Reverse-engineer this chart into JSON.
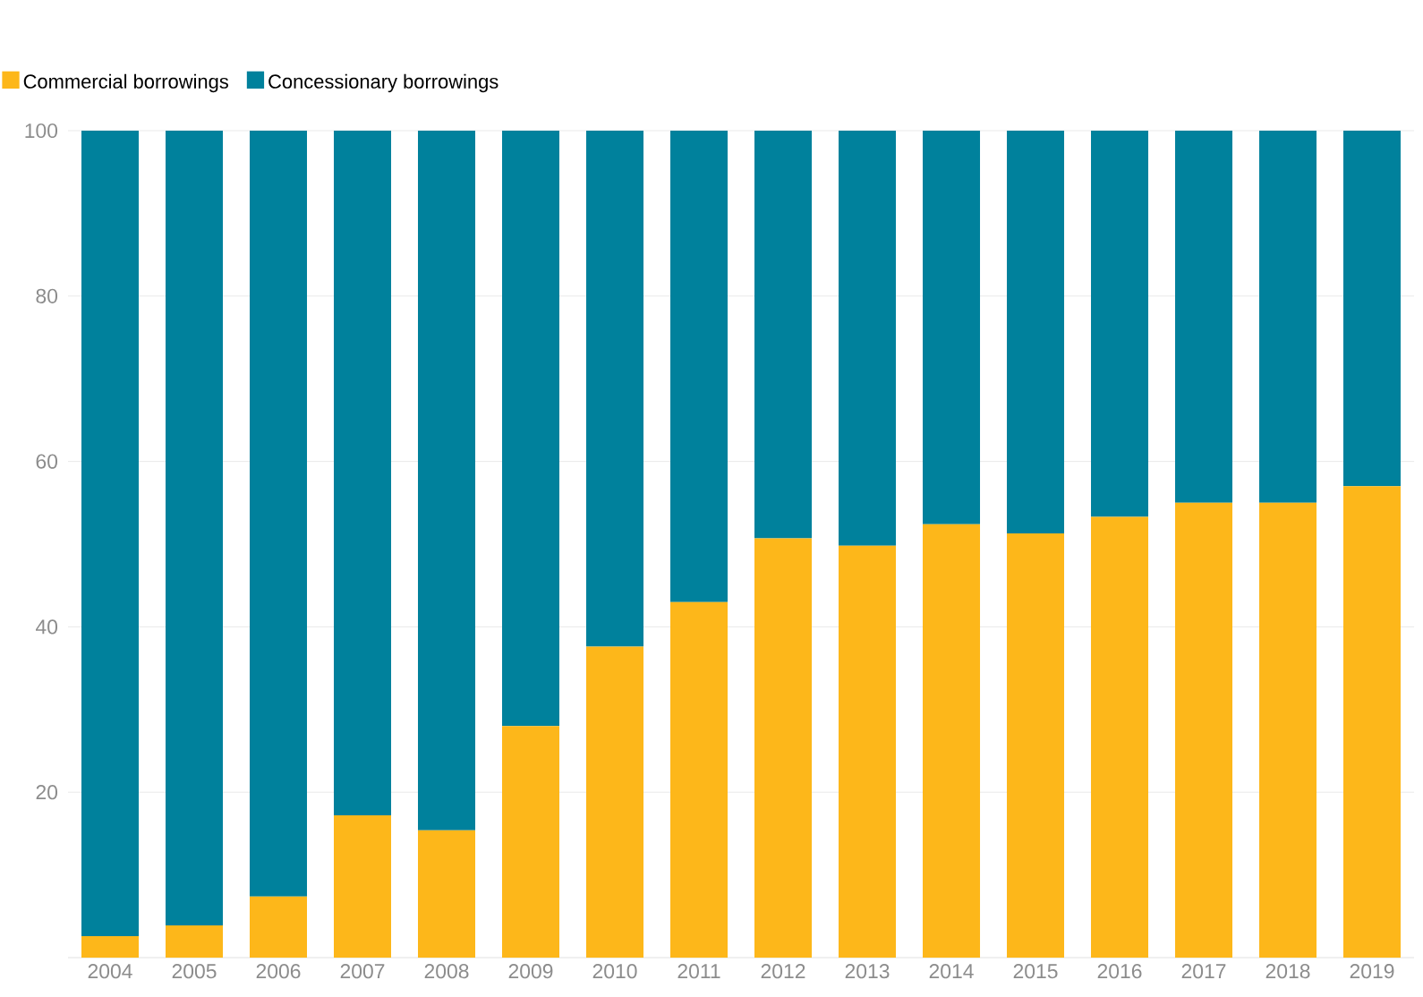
{
  "chart_data": {
    "type": "bar",
    "stacked": true,
    "categories": [
      "2004",
      "2005",
      "2006",
      "2007",
      "2008",
      "2009",
      "2010",
      "2011",
      "2012",
      "2013",
      "2014",
      "2015",
      "2016",
      "2017",
      "2018",
      "2019"
    ],
    "series": [
      {
        "name": "Commercial borrowings",
        "color": "#fdb71a",
        "values": [
          2.6,
          3.9,
          7.4,
          17.2,
          15.4,
          28,
          37.6,
          43,
          50.7,
          49.8,
          52.4,
          51.3,
          53.3,
          55,
          55,
          57
        ]
      },
      {
        "name": "Concessionary borrowings",
        "color": "#00819c",
        "values": [
          97.4,
          96.1,
          92.6,
          82.8,
          84.6,
          72,
          62.4,
          57,
          49.3,
          50.2,
          47.6,
          48.7,
          46.7,
          45,
          45,
          43
        ]
      }
    ],
    "ylim": [
      0,
      100
    ],
    "yticks": [
      20,
      40,
      60,
      80,
      100
    ],
    "grid": "y",
    "legend": "top left"
  }
}
